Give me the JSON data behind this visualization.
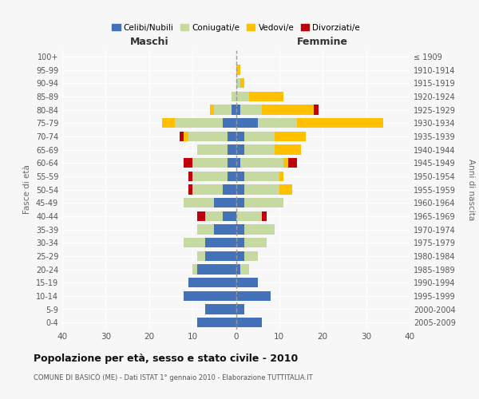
{
  "age_groups": [
    "0-4",
    "5-9",
    "10-14",
    "15-19",
    "20-24",
    "25-29",
    "30-34",
    "35-39",
    "40-44",
    "45-49",
    "50-54",
    "55-59",
    "60-64",
    "65-69",
    "70-74",
    "75-79",
    "80-84",
    "85-89",
    "90-94",
    "95-99",
    "100+"
  ],
  "birth_years": [
    "2005-2009",
    "2000-2004",
    "1995-1999",
    "1990-1994",
    "1985-1989",
    "1980-1984",
    "1975-1979",
    "1970-1974",
    "1965-1969",
    "1960-1964",
    "1955-1959",
    "1950-1954",
    "1945-1949",
    "1940-1944",
    "1935-1939",
    "1930-1934",
    "1925-1929",
    "1920-1924",
    "1915-1919",
    "1910-1914",
    "≤ 1909"
  ],
  "maschi": {
    "celibi": [
      9,
      7,
      12,
      11,
      9,
      7,
      7,
      5,
      3,
      5,
      3,
      2,
      2,
      2,
      2,
      3,
      1,
      0,
      0,
      0,
      0
    ],
    "coniugati": [
      0,
      0,
      0,
      0,
      1,
      2,
      5,
      4,
      4,
      7,
      7,
      8,
      8,
      7,
      9,
      11,
      4,
      1,
      0,
      0,
      0
    ],
    "vedovi": [
      0,
      0,
      0,
      0,
      0,
      0,
      0,
      0,
      0,
      0,
      0,
      0,
      0,
      0,
      1,
      3,
      1,
      0,
      0,
      0,
      0
    ],
    "divorziati": [
      0,
      0,
      0,
      0,
      0,
      0,
      0,
      0,
      2,
      0,
      1,
      1,
      2,
      0,
      1,
      0,
      0,
      0,
      0,
      0,
      0
    ]
  },
  "femmine": {
    "nubili": [
      6,
      2,
      8,
      5,
      1,
      2,
      2,
      2,
      0,
      2,
      2,
      2,
      1,
      2,
      2,
      5,
      1,
      0,
      0,
      0,
      0
    ],
    "coniugate": [
      0,
      0,
      0,
      0,
      2,
      3,
      5,
      7,
      6,
      9,
      8,
      8,
      10,
      7,
      7,
      9,
      5,
      3,
      1,
      0,
      0
    ],
    "vedove": [
      0,
      0,
      0,
      0,
      0,
      0,
      0,
      0,
      0,
      0,
      3,
      1,
      1,
      6,
      7,
      20,
      12,
      8,
      1,
      1,
      0
    ],
    "divorziate": [
      0,
      0,
      0,
      0,
      0,
      0,
      0,
      0,
      1,
      0,
      0,
      0,
      2,
      0,
      0,
      0,
      1,
      0,
      0,
      0,
      0
    ]
  },
  "colors": {
    "celibi": "#4472b8",
    "coniugati": "#c5d9a0",
    "vedovi": "#ffc000",
    "divorziati": "#c0000a"
  },
  "title": "Popolazione per età, sesso e stato civile - 2010",
  "subtitle": "COMUNE DI BASICÒ (ME) - Dati ISTAT 1° gennaio 2010 - Elaborazione TUTTITALIA.IT",
  "xlabel_left": "Maschi",
  "xlabel_right": "Femmine",
  "ylabel_left": "Fasce di età",
  "ylabel_right": "Anni di nascita",
  "xlim": 40,
  "legend_labels": [
    "Celibi/Nubili",
    "Coniugati/e",
    "Vedovi/e",
    "Divorziati/e"
  ],
  "bg_color": "#f7f7f7",
  "bar_height": 0.75
}
